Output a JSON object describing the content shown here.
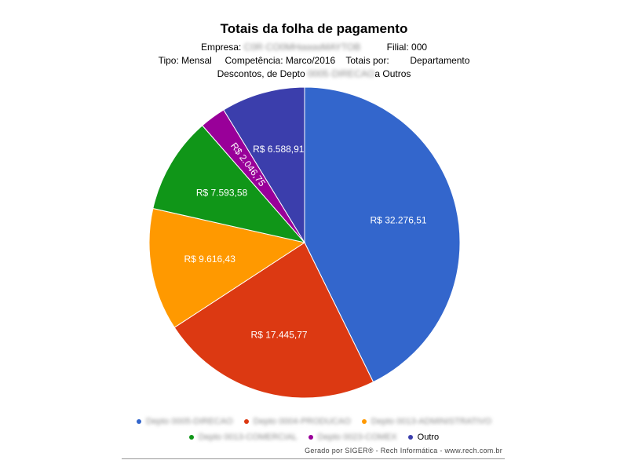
{
  "header": {
    "title": "Totais da folha de pagamento",
    "empresa_label": "Empresa:",
    "empresa_value": "C0R·CO0ΜΗααααΜΑΥΤΟΒ",
    "filial_label": "Filial:",
    "filial_value": "000",
    "tipo_text": "Tipo: Mensal",
    "competencia_text": "Competência: Marco/2016",
    "totais_label": "Totais por:",
    "totais_value": "Departamento",
    "descontos_prefix": "Descontos, de Depto",
    "descontos_hidden": "0005·DIRECAO",
    "descontos_suffix": "a Outros"
  },
  "chart_data": {
    "type": "pie",
    "start_angle_deg": 0,
    "direction": "clockwise",
    "slices": [
      {
        "name": "Depto 0005-DIRECAO",
        "value": 32276.51,
        "label": "R$ 32.276,51",
        "color": "#3366cc"
      },
      {
        "name": "Depto 0004-PRODUCAO",
        "value": 17445.77,
        "label": "R$ 17.445,77",
        "color": "#dc3912"
      },
      {
        "name": "Depto 0013-ADMINISTRATIVO",
        "value": 9616.43,
        "label": "R$ 9.616,43",
        "color": "#ff9900"
      },
      {
        "name": "Depto 0013-COMERCIAL",
        "value": 7593.58,
        "label": "R$ 7.593,58",
        "color": "#109618"
      },
      {
        "name": "Depto 0023-COMEX",
        "value": 2046.75,
        "label": "R$ 2.046,75",
        "color": "#990099"
      },
      {
        "name": "Outro",
        "value": 6588.91,
        "label": "R$ 6.588,91",
        "color": "#3b3eac"
      }
    ],
    "legend_position": "bottom",
    "legend_hidden_names": [
      true,
      true,
      true,
      true,
      true,
      false
    ]
  },
  "footer": {
    "text": "Gerado por SIGER® - Rech Informática - www.rech.com.br"
  }
}
